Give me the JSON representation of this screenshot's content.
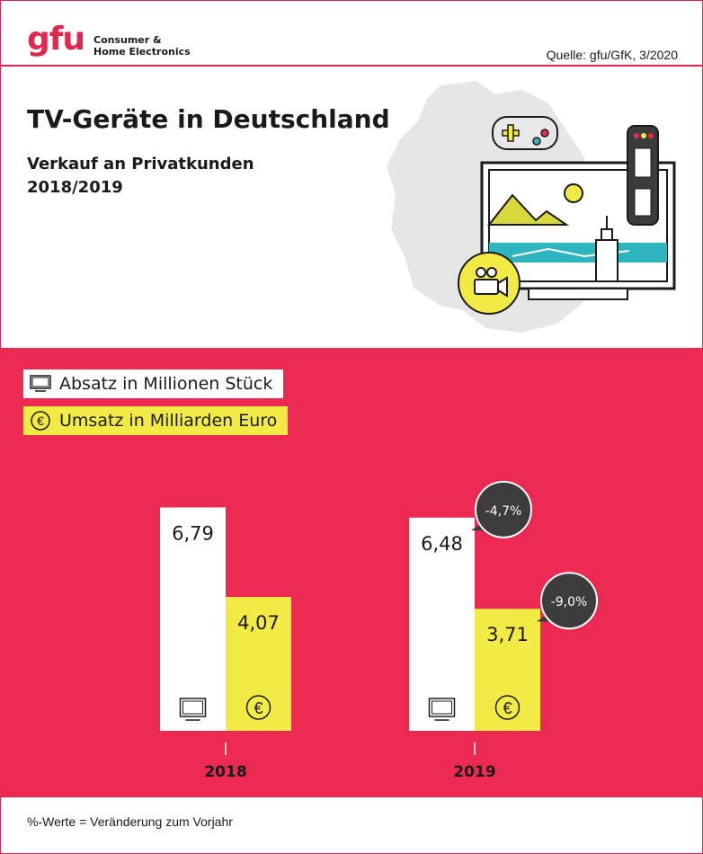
{
  "header": {
    "logo_text": "gfu",
    "logo_sub_line1": "Consumer &",
    "logo_sub_line2": "Home Electronics",
    "source": "Quelle: gfu/GfK, 3/2020"
  },
  "title": "TV-Geräte in Deutschland",
  "subtitle_line1": "Verkauf an Privatkunden",
  "subtitle_line2": "2018/2019",
  "legend": [
    {
      "label": "Absatz in Millionen Stück",
      "icon": "tv-icon",
      "color": "#ffffff"
    },
    {
      "label": "Umsatz in Milliarden Euro",
      "icon": "euro-icon",
      "color": "#f2ea45"
    }
  ],
  "colors": {
    "accent": "#e0284f",
    "panel": "#ec2a51",
    "absatz": "#ffffff",
    "umsatz": "#f2ea45",
    "bubble": "#3c3c3c"
  },
  "chart_data": {
    "type": "bar",
    "categories": [
      "2018",
      "2019"
    ],
    "series": [
      {
        "name": "Absatz in Millionen Stück",
        "values": [
          6.79,
          6.48
        ],
        "labels": [
          "6,79",
          "6,48"
        ]
      },
      {
        "name": "Umsatz in Milliarden Euro",
        "values": [
          4.07,
          3.71
        ],
        "labels": [
          "4,07",
          "3,71"
        ]
      }
    ],
    "changes": [
      {
        "category": "2019",
        "series": "Absatz in Millionen Stück",
        "label": "-4,7%"
      },
      {
        "category": "2019",
        "series": "Umsatz in Milliarden Euro",
        "label": "-9,0%"
      }
    ]
  },
  "footer": "%-Werte = Veränderung zum Vorjahr"
}
